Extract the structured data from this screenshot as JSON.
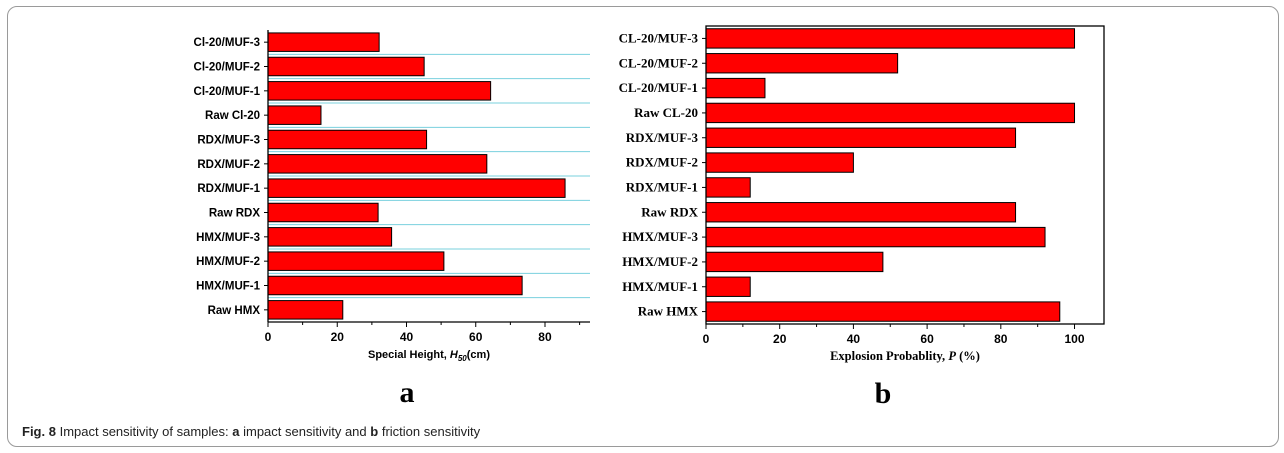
{
  "figure": {
    "label": "Fig. 8",
    "caption_parts": [
      "Impact sensitivity of samples: ",
      "a",
      " impact sensitivity and ",
      "b",
      " friction sensitivity"
    ]
  },
  "colors": {
    "bar": "#ff0000",
    "bar_edge": "#000000",
    "gridline_a": "#7ad0de"
  },
  "chart_data": [
    {
      "type": "bar",
      "orientation": "horizontal",
      "panel_label": "a",
      "categories": [
        "Raw HMX",
        "HMX/MUF-1",
        "HMX/MUF-2",
        "HMX/MUF-3",
        "Raw RDX",
        "RDX/MUF-1",
        "RDX/MUF-2",
        "RDX/MUF-3",
        "Raw Cl-20",
        "Cl-20/MUF-1",
        "Cl-20/MUF-2",
        "Cl-20/MUF-3"
      ],
      "values": [
        21.6,
        73.4,
        50.8,
        35.7,
        31.8,
        85.8,
        63.2,
        45.8,
        15.3,
        64.3,
        45.1,
        32.1
      ],
      "xlabel": {
        "main": "Special Height, ",
        "var": "H",
        "sub": "50",
        "unit": "(cm)"
      },
      "xlim": [
        0,
        93
      ],
      "xticks": [
        0,
        20,
        40,
        60,
        80
      ],
      "grid": "horizontal"
    },
    {
      "type": "bar",
      "orientation": "horizontal",
      "panel_label": "b",
      "categories": [
        "Raw HMX",
        "HMX/MUF-1",
        "HMX/MUF-2",
        "HMX/MUF-3",
        "Raw RDX",
        "RDX/MUF-1",
        "RDX/MUF-2",
        "RDX/MUF-3",
        "Raw CL-20",
        "CL-20/MUF-1",
        "CL-20/MUF-2",
        "CL-20/MUF-3"
      ],
      "values": [
        96,
        12,
        48,
        92,
        84,
        12,
        40,
        84,
        100,
        16,
        52,
        100
      ],
      "xlabel": {
        "main": "Explosion Probablity, ",
        "var": "P",
        "sub": "",
        "unit": " (%)"
      },
      "xlim": [
        0,
        108
      ],
      "xticks": [
        0,
        20,
        40,
        60,
        80,
        100
      ],
      "grid": "none"
    }
  ]
}
